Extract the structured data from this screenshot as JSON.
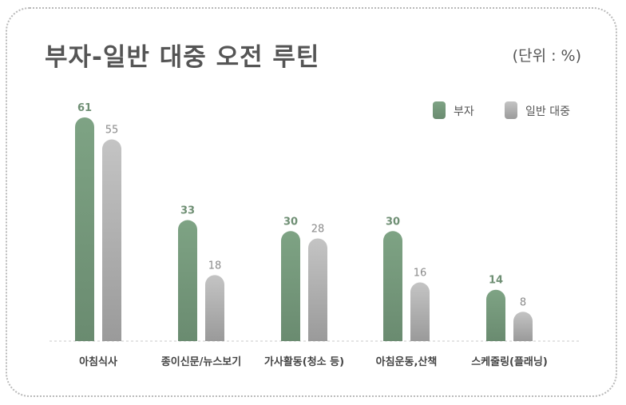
{
  "colors": {
    "rich": "#7a9e80",
    "general": "#a9a9a9",
    "text": "#555555",
    "baseline": "#c8c8c8"
  },
  "header": {
    "title": "부자-일반 대중 오전 루틴",
    "unit": "(단위 : %)"
  },
  "chart_data": {
    "type": "bar",
    "title": "부자-일반 대중 오전 루틴",
    "unit": "(단위 : %)",
    "categories": [
      "아침식사",
      "종이신문/뉴스보기",
      "가사활동(청소 등)",
      "아침운동,산책",
      "스케줄링(플래닝)"
    ],
    "series": [
      {
        "name": "부자",
        "values": [
          61,
          33,
          30,
          30,
          14
        ],
        "color": "#7a9e80"
      },
      {
        "name": "일반 대중",
        "values": [
          55,
          18,
          28,
          16,
          8
        ],
        "color": "#a9a9a9"
      }
    ],
    "ylim": [
      0,
      61
    ],
    "legend": "top-right",
    "grid": false
  }
}
